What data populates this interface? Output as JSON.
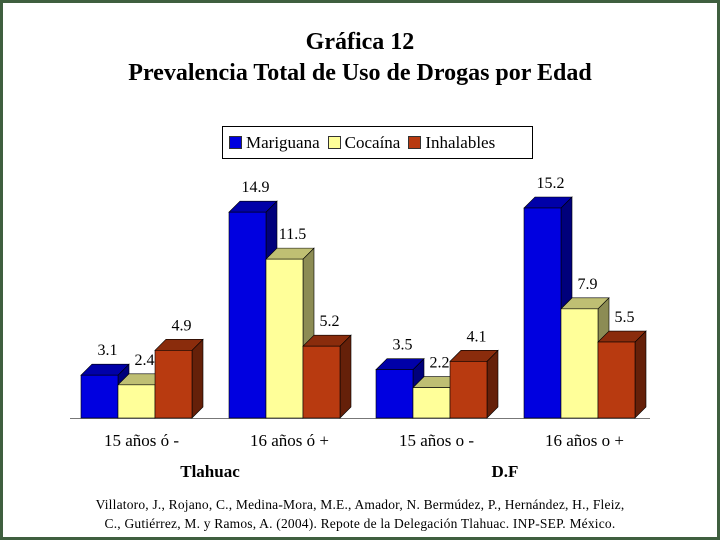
{
  "title": [
    "Gráfica 12",
    "Prevalencia Total de Uso de Drogas por Edad"
  ],
  "legend_entries": [
    {
      "label": "Mariguana",
      "color": "#0000e0"
    },
    {
      "label": "Cocaína",
      "color": "#ffff99"
    },
    {
      "label": "Inhalables",
      "color": "#b83a10"
    }
  ],
  "chart_data": {
    "type": "bar",
    "title": "Gráfica 12 Prevalencia Total de Uso de Drogas por Edad",
    "categories": [
      "15 años ó -",
      "16 años ó +",
      "15 años o -",
      "16 años o +"
    ],
    "groups": [
      {
        "label": "Tlahuac",
        "categories": [
          0,
          1
        ]
      },
      {
        "label": "D.F",
        "categories": [
          2,
          3
        ]
      }
    ],
    "series": [
      {
        "name": "Mariguana",
        "values": [
          3.1,
          14.9,
          3.5,
          15.2
        ]
      },
      {
        "name": "Cocaína",
        "values": [
          2.4,
          11.5,
          2.2,
          7.9
        ]
      },
      {
        "name": "Inhalables",
        "values": [
          4.9,
          5.2,
          4.1,
          5.5
        ]
      }
    ],
    "data_labels": [
      [
        "3.1",
        "14.9",
        "3.5",
        "15.2"
      ],
      [
        "2.4",
        "11.5",
        "2.2",
        "7.9"
      ],
      [
        "4.9",
        "5.2",
        "4.1",
        "5.5"
      ]
    ],
    "ylim": [
      0,
      15.2
    ],
    "grid": false,
    "legend_position": "top-center",
    "style": "3d-bar"
  },
  "citation": [
    "Villatoro, J., Rojano, C., Medina-Mora, M.E., Amador, N. Bermúdez, P., Hernández, H., Fleiz,",
    "C., Gutiérrez, M. y Ramos, A. (2004). Repote de la Delegación Tlahuac. INP-SEP. México."
  ]
}
